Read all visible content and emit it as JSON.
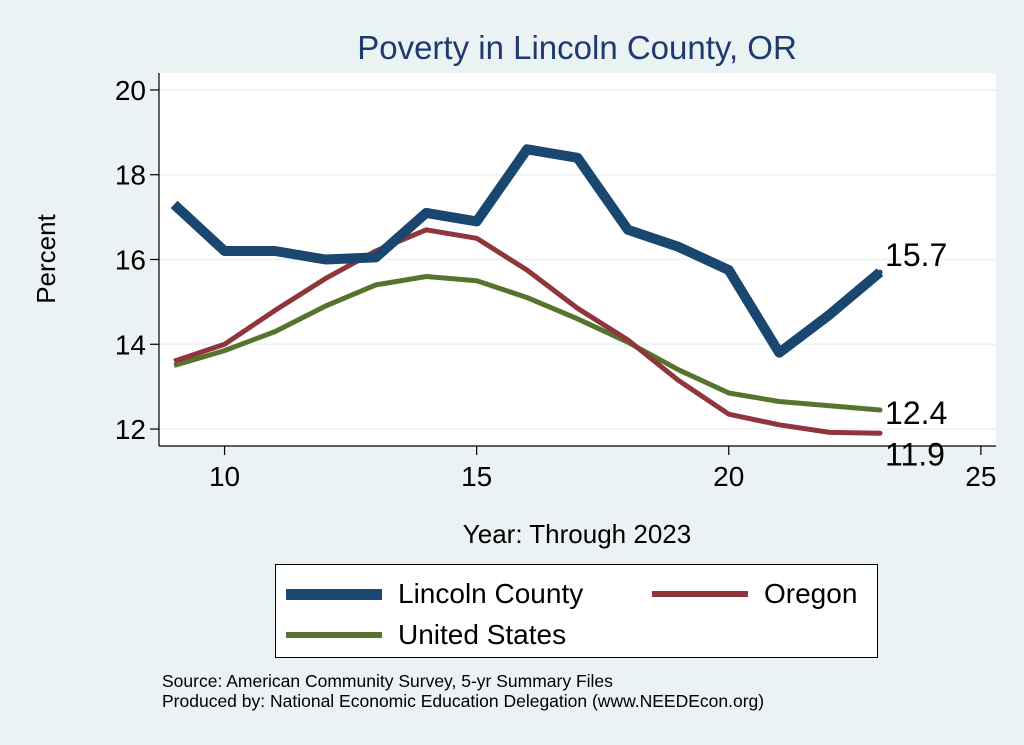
{
  "chart_data": {
    "type": "line",
    "title": "Poverty in Lincoln County, OR",
    "xlabel": "Year: Through 2023",
    "ylabel": "Percent",
    "xlim": [
      8.7,
      25.3
    ],
    "ylim": [
      11.6,
      20.4
    ],
    "xticks": [
      10,
      15,
      20,
      25
    ],
    "yticks": [
      12,
      14,
      16,
      18,
      20
    ],
    "grid": true,
    "x": [
      9,
      10,
      11,
      12,
      13,
      14,
      15,
      16,
      17,
      18,
      19,
      20,
      21,
      22,
      23
    ],
    "series": [
      {
        "name": "Lincoln County",
        "color": "#1a476f",
        "values": [
          17.3,
          16.2,
          16.2,
          16.0,
          16.05,
          17.1,
          16.9,
          18.6,
          18.4,
          16.7,
          16.3,
          15.75,
          13.8,
          14.7,
          15.7
        ],
        "end_label": "15.7"
      },
      {
        "name": "Oregon",
        "color": "#90353b",
        "values": [
          13.6,
          14.0,
          14.8,
          15.55,
          16.2,
          16.7,
          16.5,
          15.75,
          14.85,
          14.1,
          13.15,
          12.35,
          12.1,
          11.92,
          11.9
        ],
        "end_label": "11.9"
      },
      {
        "name": "United States",
        "color": "#55752f",
        "values": [
          13.5,
          13.85,
          14.3,
          14.9,
          15.4,
          15.6,
          15.5,
          15.1,
          14.6,
          14.05,
          13.4,
          12.85,
          12.65,
          12.55,
          12.45
        ],
        "end_label": "12.4"
      }
    ],
    "legend_position": "bottom"
  },
  "legend": {
    "items": [
      {
        "label": "Lincoln County",
        "color": "#1a476f"
      },
      {
        "label": "Oregon",
        "color": "#90353b"
      },
      {
        "label": "United States",
        "color": "#55752f"
      }
    ]
  },
  "source": {
    "line1": "Source: American Community Survey, 5-yr Summary Files",
    "line2": "Produced by: National Economic Education Delegation (www.NEEDEcon.org)"
  }
}
